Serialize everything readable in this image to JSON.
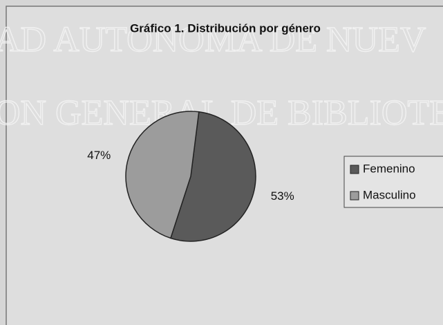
{
  "chart_data": {
    "type": "pie",
    "title": "Gráfico 1. Distribución por género",
    "categories": [
      "Femenino",
      "Masculino"
    ],
    "values": [
      53,
      47
    ],
    "value_labels": [
      "53%",
      "47%"
    ],
    "colors": [
      "#5a5a5a",
      "#9c9c9c"
    ],
    "legend": "right",
    "watermarks": [
      "AD AUTONOMA DE NUEV",
      "ON GENERAL DE BIBLIOTEC"
    ]
  }
}
